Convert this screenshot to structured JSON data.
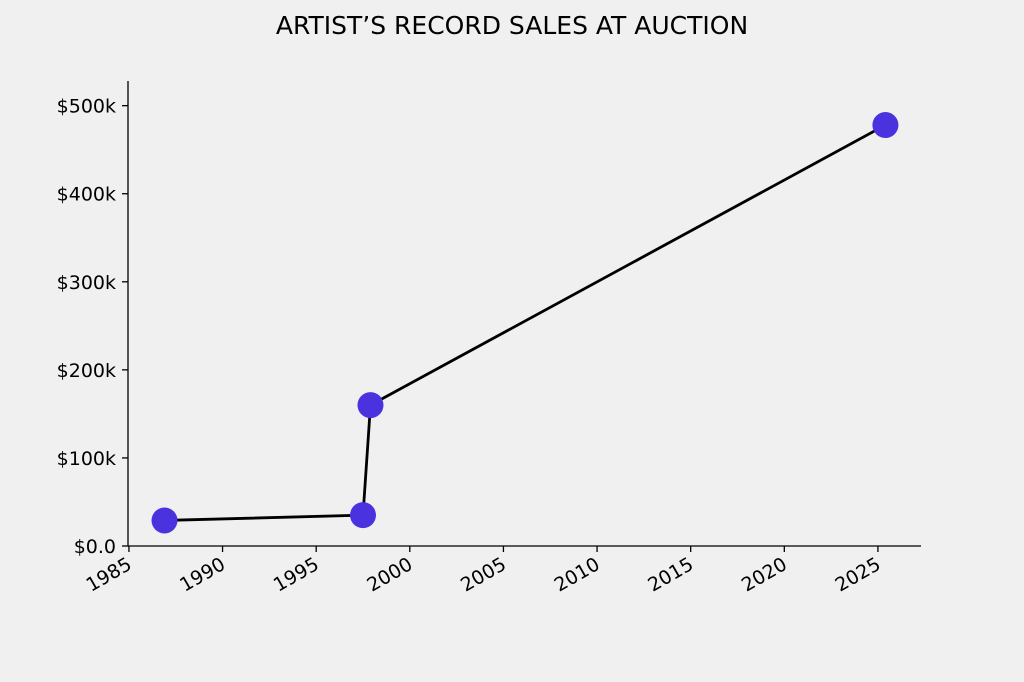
{
  "chart_data": {
    "type": "line",
    "title": "ARTIST’S RECORD SALES AT AUCTION",
    "x": [
      1986.9,
      1997.5,
      1997.9,
      2025.4
    ],
    "series": [
      {
        "values": [
          29000,
          35000,
          160000,
          478000
        ],
        "color": "#4a33df",
        "line_color": "#000000"
      }
    ],
    "xlim": [
      1984.95,
      2027.3
    ],
    "ylim": [
      0,
      528000
    ],
    "xticks": [
      1985,
      1990,
      1995,
      2000,
      2005,
      2010,
      2015,
      2020,
      2025
    ],
    "yticks": [
      {
        "value": 0,
        "label": "$0.0"
      },
      {
        "value": 100000,
        "label": "$100k"
      },
      {
        "value": 200000,
        "label": "$200k"
      },
      {
        "value": 300000,
        "label": "$300k"
      },
      {
        "value": 400000,
        "label": "$400k"
      },
      {
        "value": 500000,
        "label": "$500k"
      }
    ],
    "grid": false
  }
}
